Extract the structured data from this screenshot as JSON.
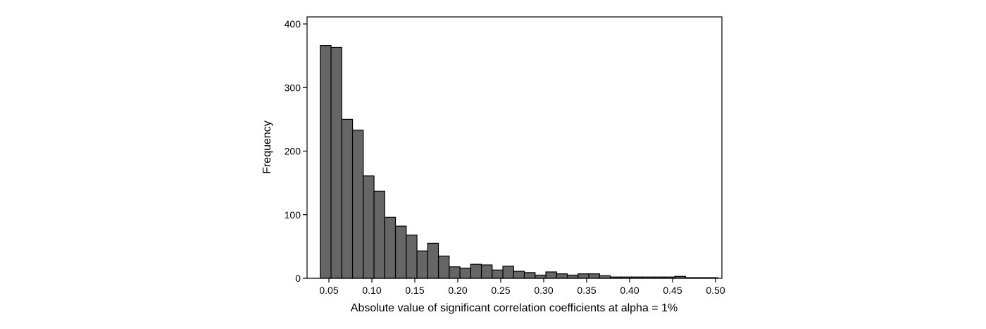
{
  "chart_data": {
    "type": "bar",
    "title": "",
    "xlabel": "Absolute value of significant correlation coefficients at alpha = 1%",
    "ylabel": "Frequency",
    "xlim": [
      0.03,
      0.51
    ],
    "ylim": [
      0,
      400
    ],
    "x_ticks": [
      "0.05",
      "0.10",
      "0.15",
      "0.20",
      "0.25",
      "0.30",
      "0.35",
      "0.40",
      "0.45",
      "0.50"
    ],
    "y_ticks": [
      "0",
      "100",
      "200",
      "300",
      "400"
    ],
    "bin_width": 0.0125,
    "bins_start": [
      0.04,
      0.0525,
      0.065,
      0.0775,
      0.09,
      0.1025,
      0.115,
      0.1275,
      0.14,
      0.1525,
      0.165,
      0.1775,
      0.19,
      0.2025,
      0.215,
      0.2275,
      0.24,
      0.2525,
      0.265,
      0.2775,
      0.29,
      0.3025,
      0.315,
      0.3275,
      0.34,
      0.3525,
      0.365,
      0.3775,
      0.39,
      0.4025,
      0.415,
      0.4275,
      0.44,
      0.4525,
      0.465,
      0.4775,
      0.49
    ],
    "values": [
      366,
      363,
      250,
      233,
      161,
      137,
      96,
      82,
      68,
      43,
      55,
      35,
      18,
      16,
      22,
      21,
      13,
      19,
      11,
      9,
      5,
      10,
      7,
      5,
      7,
      7,
      4,
      2,
      2,
      2,
      2,
      2,
      2,
      3,
      1,
      1,
      1
    ],
    "bar_color": "#666666",
    "grid": false
  }
}
